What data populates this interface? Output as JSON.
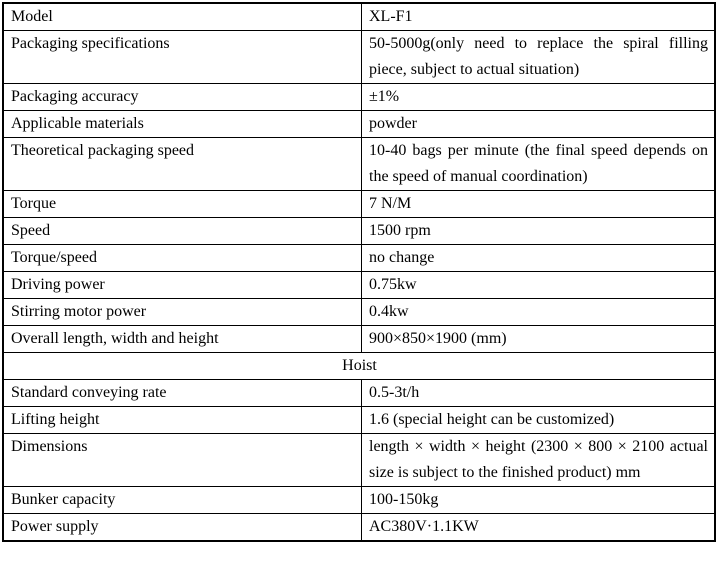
{
  "table": {
    "rows": [
      [
        "Model",
        "XL-F1"
      ],
      [
        "Packaging specifications",
        "50-5000g(only need to replace the spiral filling piece, subject to actual situation)"
      ],
      [
        "Packaging accuracy",
        "±1%"
      ],
      [
        "Applicable materials",
        "powder"
      ],
      [
        "Theoretical packaging speed",
        "10-40 bags per minute (the final speed depends on the speed of manual coordination)"
      ],
      [
        "Torque",
        "7 N/M"
      ],
      [
        "Speed",
        "1500 rpm"
      ],
      [
        "Torque/speed",
        "no change"
      ],
      [
        "Driving power",
        "0.75kw"
      ],
      [
        "Stirring motor power",
        "0.4kw"
      ],
      [
        "Overall length, width and height",
        "900×850×1900 (mm)"
      ]
    ],
    "section": "Hoist",
    "section_rows": [
      [
        "Standard conveying rate",
        "0.5-3t/h"
      ],
      [
        "Lifting height",
        "1.6 (special height can be customized)"
      ],
      [
        "Dimensions",
        "length × width × height (2300 × 800 × 2100 actual size is subject to the finished product) mm"
      ],
      [
        "Bunker capacity",
        "100-150kg"
      ],
      [
        "Power supply",
        "AC380V·1.1KW"
      ]
    ]
  }
}
